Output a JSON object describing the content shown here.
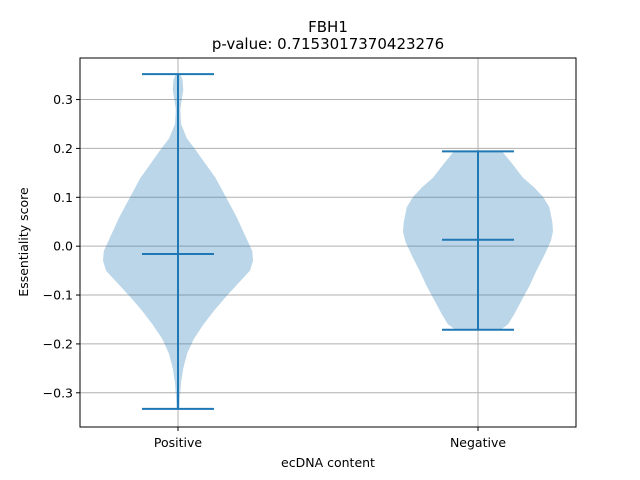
{
  "chart_data": {
    "type": "violin",
    "title": "FBH1",
    "subtitle": "p-value: 0.7153017370423276",
    "xlabel": "ecDNA content",
    "ylabel": "Essentiality score",
    "categories": [
      "Positive",
      "Negative"
    ],
    "ylim": [
      -0.37,
      0.385
    ],
    "yticks": [
      -0.3,
      -0.2,
      -0.1,
      0.0,
      0.1,
      0.2,
      0.3
    ],
    "ytick_labels": [
      "−0.3",
      "−0.2",
      "−0.1",
      "0.0",
      "0.1",
      "0.2",
      "0.3"
    ],
    "grid": true,
    "colors": {
      "body": "#1f77b4",
      "body_alpha": 0.3,
      "lines": "#1f77b4"
    },
    "series": [
      {
        "category": "Positive",
        "max": 0.352,
        "min": -0.333,
        "median": -0.016,
        "density": [
          [
            0.352,
            0.03
          ],
          [
            0.34,
            0.06
          ],
          [
            0.32,
            0.07
          ],
          [
            0.3,
            0.05
          ],
          [
            0.28,
            0.03
          ],
          [
            0.25,
            0.04
          ],
          [
            0.22,
            0.12
          ],
          [
            0.2,
            0.22
          ],
          [
            0.17,
            0.36
          ],
          [
            0.14,
            0.5
          ],
          [
            0.1,
            0.64
          ],
          [
            0.06,
            0.78
          ],
          [
            0.02,
            0.9
          ],
          [
            -0.01,
            0.99
          ],
          [
            -0.03,
            1.0
          ],
          [
            -0.05,
            0.96
          ],
          [
            -0.07,
            0.84
          ],
          [
            -0.1,
            0.66
          ],
          [
            -0.13,
            0.49
          ],
          [
            -0.16,
            0.34
          ],
          [
            -0.19,
            0.21
          ],
          [
            -0.22,
            0.12
          ],
          [
            -0.25,
            0.07
          ],
          [
            -0.28,
            0.04
          ],
          [
            -0.31,
            0.025
          ],
          [
            -0.333,
            0.02
          ]
        ]
      },
      {
        "category": "Negative",
        "max": 0.194,
        "min": -0.171,
        "median": 0.013,
        "density": [
          [
            0.194,
            0.32
          ],
          [
            0.17,
            0.45
          ],
          [
            0.14,
            0.6
          ],
          [
            0.12,
            0.75
          ],
          [
            0.1,
            0.87
          ],
          [
            0.08,
            0.95
          ],
          [
            0.05,
            0.99
          ],
          [
            0.03,
            1.0
          ],
          [
            0.01,
            0.97
          ],
          [
            -0.02,
            0.88
          ],
          [
            -0.05,
            0.78
          ],
          [
            -0.08,
            0.69
          ],
          [
            -0.1,
            0.62
          ],
          [
            -0.12,
            0.55
          ],
          [
            -0.14,
            0.48
          ],
          [
            -0.16,
            0.4
          ],
          [
            -0.171,
            0.3
          ]
        ]
      }
    ]
  }
}
